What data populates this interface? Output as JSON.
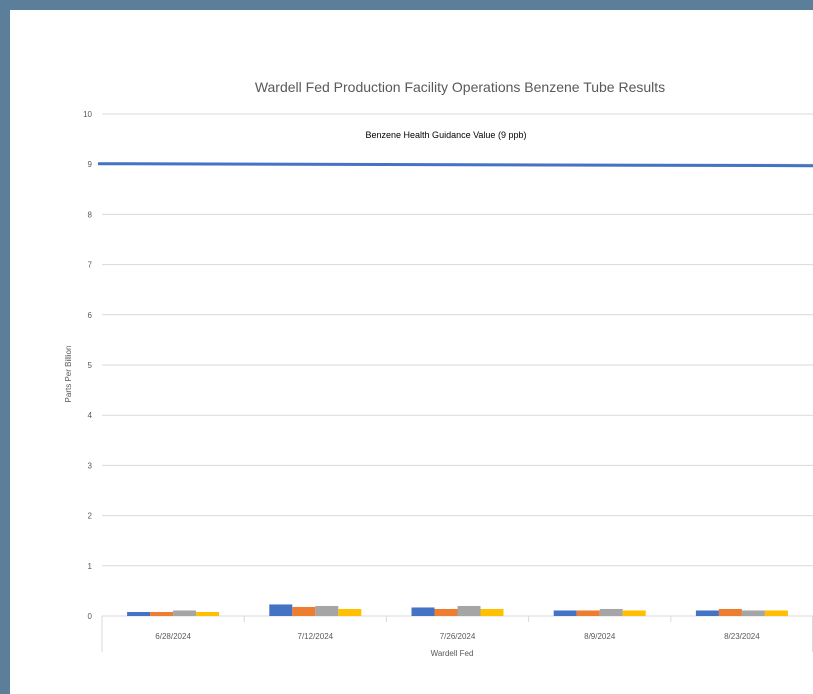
{
  "chart_data": {
    "type": "bar",
    "title": "Wardell Fed Production Facility Operations Benzene Tube Results",
    "xlabel": "Wardell Fed",
    "ylabel": "Parts Per Billion",
    "ylim": [
      0,
      10
    ],
    "yticks": [
      "0",
      "1",
      "2",
      "3",
      "4",
      "5",
      "6",
      "7",
      "8",
      "9",
      "10"
    ],
    "categories": [
      "6/28/2024",
      "7/12/2024",
      "7/26/2024",
      "8/9/2024",
      "8/23/2024"
    ],
    "series": [
      {
        "color": "#4472c4",
        "values": [
          0.08,
          0.23,
          0.17,
          0.11,
          0.11
        ]
      },
      {
        "color": "#ed7d31",
        "values": [
          0.08,
          0.18,
          0.14,
          0.11,
          0.14
        ]
      },
      {
        "color": "#a5a5a5",
        "values": [
          0.11,
          0.2,
          0.2,
          0.14,
          0.11
        ]
      },
      {
        "color": "#ffc000",
        "values": [
          0.08,
          0.14,
          0.14,
          0.11,
          0.11
        ]
      }
    ],
    "reference_line": {
      "label": "Benzene Health Guidance Value (9 ppb)",
      "value": 9,
      "color": "#4472c4"
    },
    "grid": true,
    "legend": "none"
  }
}
